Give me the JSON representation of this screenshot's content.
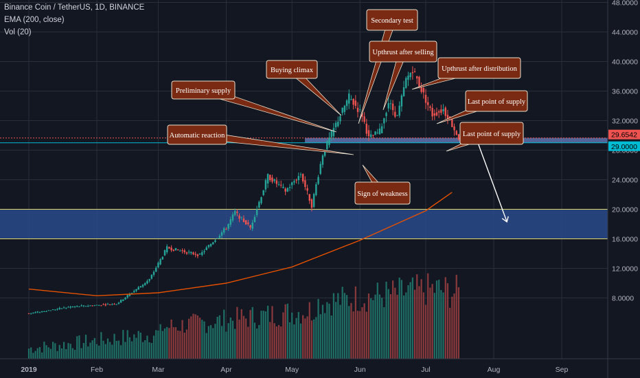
{
  "header": {
    "title": "Binance Coin / TetherUS, 1D, BINANCE",
    "ema": "EMA (200, close)",
    "vol": "Vol (20)"
  },
  "colors": {
    "background": "#131722",
    "grid": "#2a2e39",
    "up": "#26a69a",
    "down": "#ef5350",
    "ema": "#e65100",
    "zone": "#2a4a8a",
    "zone_border": "#e0d86a",
    "callout": "#7a2a12",
    "price_tag_red": "#ef5350",
    "price_tag_cyan": "#00bcd4"
  },
  "chart_data": {
    "type": "candlestick",
    "title": "Binance Coin / TetherUS, 1D, BINANCE",
    "indicators": [
      "EMA (200, close)",
      "Vol (20)"
    ],
    "x_ticks": [
      "2019",
      "Feb",
      "Mar",
      "Apr",
      "May",
      "Jun",
      "Jul",
      "Aug",
      "Sep"
    ],
    "y_ticks": [
      "8.0000",
      "12.0000",
      "16.0000",
      "20.0000",
      "24.0000",
      "28.0000",
      "32.0000",
      "36.0000",
      "40.0000",
      "44.0000",
      "48.0000"
    ],
    "ylim": [
      4,
      50
    ],
    "price_tags": [
      {
        "text": "29.6542",
        "value": 29.6542,
        "color": "red"
      },
      {
        "text": "29.0000",
        "value": 29.0,
        "color": "cyan"
      }
    ],
    "zones": [
      {
        "from": 16.0,
        "to": 20.0,
        "label": ""
      },
      {
        "from": 29.0,
        "to": 29.6542,
        "label": ""
      }
    ],
    "anchors": [
      {
        "date": "2019-01-01",
        "price": 5.9
      },
      {
        "date": "2019-01-20",
        "price": 6.8
      },
      {
        "date": "2019-02-10",
        "price": 7.2
      },
      {
        "date": "2019-02-25",
        "price": 10.5
      },
      {
        "date": "2019-03-05",
        "price": 14.8
      },
      {
        "date": "2019-03-20",
        "price": 13.8
      },
      {
        "date": "2019-04-01",
        "price": 17.5
      },
      {
        "date": "2019-04-05",
        "price": 19.6
      },
      {
        "date": "2019-04-12",
        "price": 17.5
      },
      {
        "date": "2019-04-20",
        "price": 24.5
      },
      {
        "date": "2019-04-28",
        "price": 22.5
      },
      {
        "date": "2019-05-05",
        "price": 24.8
      },
      {
        "date": "2019-05-10",
        "price": 20.5
      },
      {
        "date": "2019-05-15",
        "price": 27.5
      },
      {
        "date": "2019-05-21",
        "price": 31.5
      },
      {
        "date": "2019-05-27",
        "price": 35.2
      },
      {
        "date": "2019-06-02",
        "price": 32.8
      },
      {
        "date": "2019-06-05",
        "price": 29.6
      },
      {
        "date": "2019-06-10",
        "price": 30.5
      },
      {
        "date": "2019-06-14",
        "price": 34.5
      },
      {
        "date": "2019-06-18",
        "price": 32.5
      },
      {
        "date": "2019-06-22",
        "price": 37.5
      },
      {
        "date": "2019-06-25",
        "price": 39.0
      },
      {
        "date": "2019-06-30",
        "price": 35.5
      },
      {
        "date": "2019-07-04",
        "price": 32.8
      },
      {
        "date": "2019-07-09",
        "price": 33.5
      },
      {
        "date": "2019-07-12",
        "price": 32.0
      },
      {
        "date": "2019-07-16",
        "price": 29.7
      }
    ],
    "projection": [
      {
        "date": "2019-07-17",
        "price": 29.7
      },
      {
        "date": "2019-07-18",
        "price": 30.6
      },
      {
        "date": "2019-07-20",
        "price": 29.5
      },
      {
        "date": "2019-07-21",
        "price": 30.7
      },
      {
        "date": "2019-07-23",
        "price": 29.6
      },
      {
        "date": "2019-07-25",
        "price": 28.8
      },
      {
        "date": "2019-08-07",
        "price": 18.3
      }
    ],
    "ema": [
      {
        "date": "2019-01-01",
        "price": 9.2
      },
      {
        "date": "2019-02-01",
        "price": 8.3
      },
      {
        "date": "2019-03-01",
        "price": 8.7
      },
      {
        "date": "2019-04-01",
        "price": 10.0
      },
      {
        "date": "2019-05-01",
        "price": 12.2
      },
      {
        "date": "2019-06-01",
        "price": 15.8
      },
      {
        "date": "2019-07-01",
        "price": 19.8
      },
      {
        "date": "2019-07-13",
        "price": 22.3
      }
    ],
    "annotations": [
      {
        "text": "Preliminary supply"
      },
      {
        "text": "Buying climax"
      },
      {
        "text": "Secondary test"
      },
      {
        "text": "Upthrust after selling"
      },
      {
        "text": "Upthrust after distribution"
      },
      {
        "text": "Last point of supply"
      },
      {
        "text": "Automatic reaction"
      },
      {
        "text": "Sign of weakness"
      },
      {
        "text": "Last point of supply"
      }
    ]
  }
}
